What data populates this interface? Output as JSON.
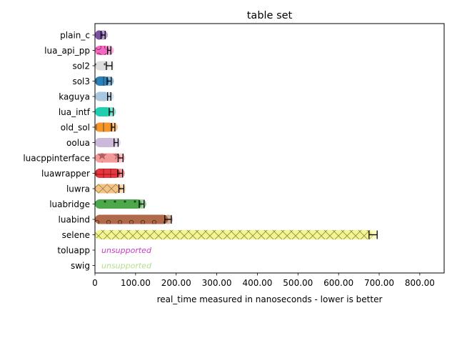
{
  "chart_data": {
    "type": "bar",
    "orientation": "horizontal",
    "title": "table set",
    "xlabel": "real_time measured in nanoseconds - lower is better",
    "ylabel": "",
    "xlim": [
      0,
      860
    ],
    "xticks": [
      0,
      100,
      200,
      300,
      400,
      500,
      600,
      700,
      800
    ],
    "xtick_labels": [
      "0",
      "100.00",
      "200.00",
      "300.00",
      "400.00",
      "500.00",
      "600.00",
      "700.00",
      "800.00"
    ],
    "grid": false,
    "categories": [
      "plain_c",
      "lua_api_pp",
      "sol2",
      "sol3",
      "kaguya",
      "lua_intf",
      "old_sol",
      "oolua",
      "luacppinterface",
      "luawrapper",
      "luwra",
      "luabridge",
      "luabind",
      "selene",
      "toluapp",
      "swig"
    ],
    "values": [
      20,
      35,
      35,
      35,
      35,
      40,
      45,
      52,
      63,
      62,
      65,
      115,
      180,
      685,
      null,
      null
    ],
    "error": [
      5,
      4,
      7,
      5,
      4,
      5,
      4,
      5,
      6,
      6,
      6,
      6,
      8,
      10,
      null,
      null
    ],
    "unsupported_label": "unsupported",
    "colors": [
      "#7b4fa6",
      "#f06bc0",
      "#dedede",
      "#2a80b9",
      "#a9c8e0",
      "#1fcfb0",
      "#f7962c",
      "#cdb8dc",
      "#f59a9a",
      "#e8363e",
      "#f8c186",
      "#4da84c",
      "#b06a4a",
      "#f5f590",
      "#c33fc4",
      "#b4dc8c"
    ],
    "hatches": [
      "none",
      "circle",
      "dot",
      "line",
      "none",
      "none",
      "line",
      "none",
      "star",
      "plus",
      "x",
      "dot",
      "o",
      "x",
      "none",
      "none"
    ]
  }
}
